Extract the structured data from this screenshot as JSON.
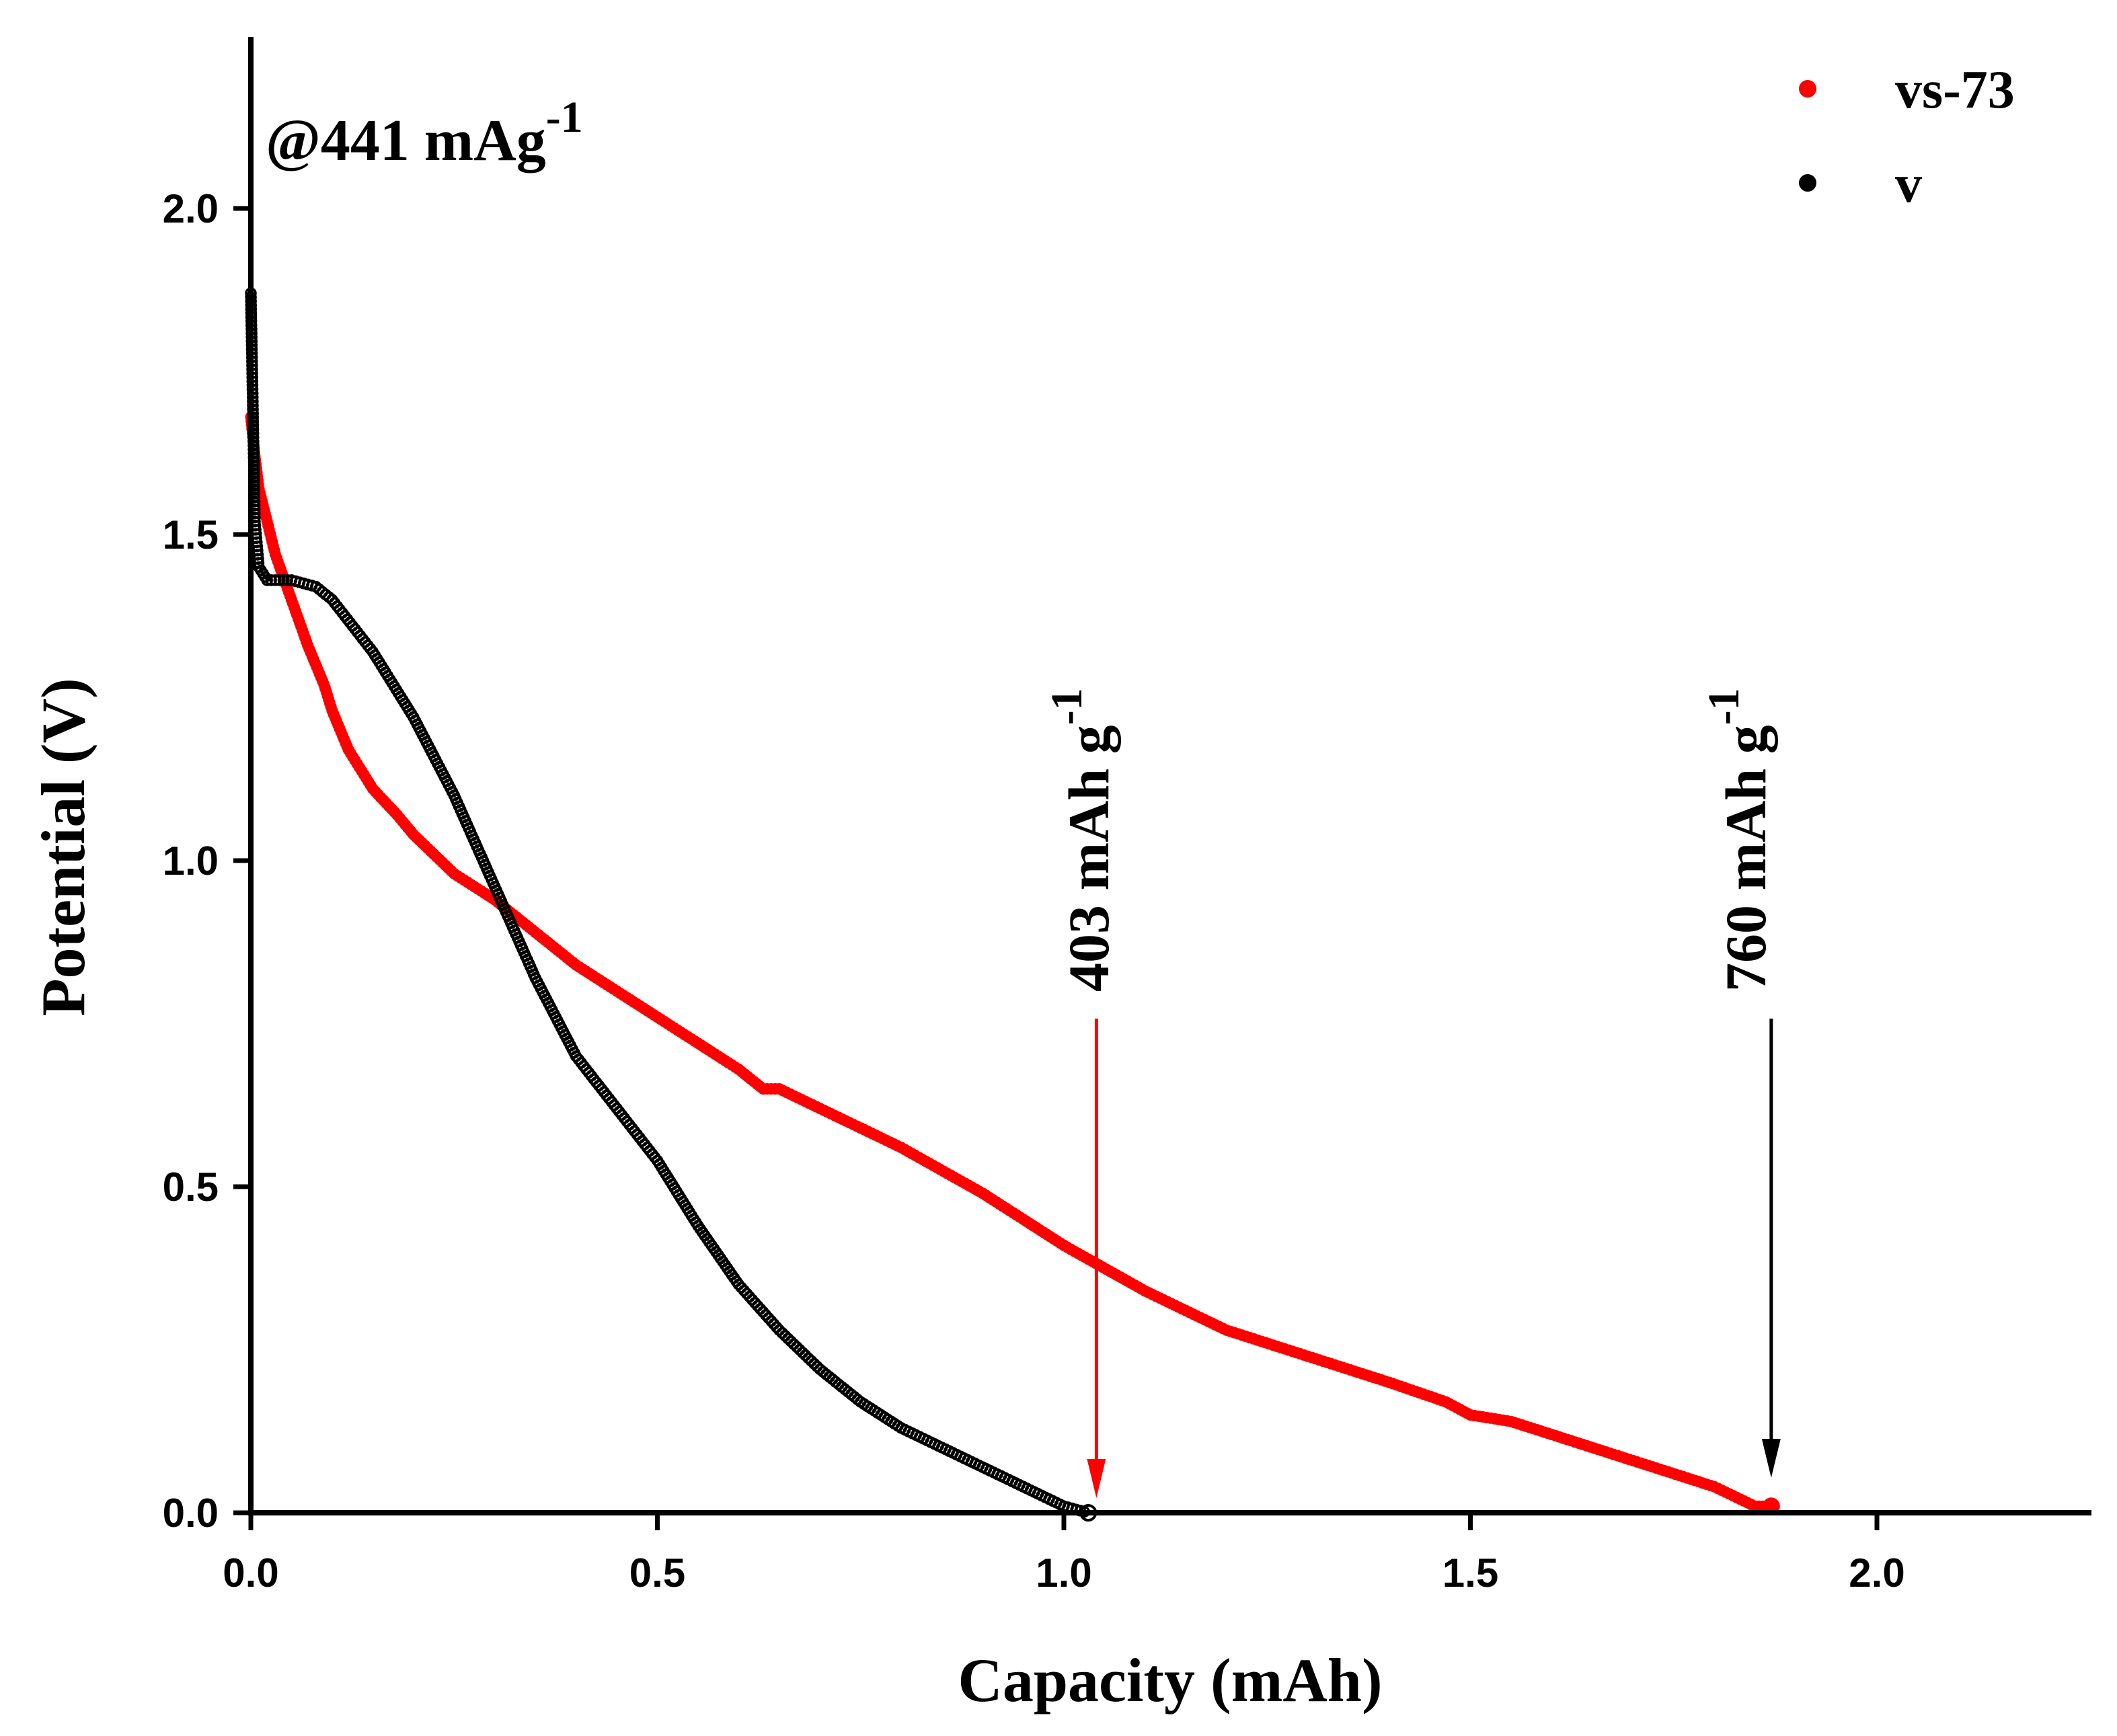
{
  "chart_data": {
    "type": "scatter",
    "title": "",
    "xlabel": "Capacity (mAh)",
    "ylabel": "Potential (V)",
    "xlim": [
      0,
      2.25
    ],
    "ylim": [
      0,
      2.25
    ],
    "xticks": [
      0.0,
      0.5,
      1.0,
      1.5,
      2.0
    ],
    "yticks": [
      0.0,
      0.5,
      1.0,
      1.5,
      2.0
    ],
    "xtick_labels": [
      "0.0",
      "0.5",
      "1.0",
      "1.5",
      "2.0"
    ],
    "ytick_labels": [
      "0.0",
      "0.5",
      "1.0",
      "1.5",
      "2.0"
    ],
    "legend_position": "top-right",
    "series": [
      {
        "name": "vs-73",
        "color": "#ff0000",
        "x": [
          0.0,
          0.005,
          0.01,
          0.02,
          0.03,
          0.05,
          0.07,
          0.09,
          0.1,
          0.12,
          0.15,
          0.18,
          0.2,
          0.25,
          0.3,
          0.35,
          0.4,
          0.45,
          0.5,
          0.55,
          0.6,
          0.63,
          0.65,
          0.7,
          0.8,
          0.9,
          1.0,
          1.1,
          1.2,
          1.3,
          1.4,
          1.47,
          1.5,
          1.55,
          1.6,
          1.7,
          1.8,
          1.85,
          1.87
        ],
        "y": [
          1.68,
          1.62,
          1.57,
          1.52,
          1.47,
          1.4,
          1.33,
          1.27,
          1.23,
          1.17,
          1.11,
          1.07,
          1.04,
          0.98,
          0.94,
          0.89,
          0.84,
          0.8,
          0.76,
          0.72,
          0.68,
          0.65,
          0.65,
          0.62,
          0.56,
          0.49,
          0.41,
          0.34,
          0.28,
          0.24,
          0.2,
          0.17,
          0.15,
          0.14,
          0.12,
          0.08,
          0.04,
          0.01,
          0.01
        ]
      },
      {
        "name": "v",
        "color": "#000000",
        "x": [
          0.0,
          0.005,
          0.01,
          0.02,
          0.05,
          0.08,
          0.1,
          0.15,
          0.2,
          0.25,
          0.3,
          0.35,
          0.4,
          0.45,
          0.5,
          0.55,
          0.6,
          0.65,
          0.7,
          0.75,
          0.8,
          0.85,
          0.9,
          0.95,
          1.0,
          1.03
        ],
        "y": [
          1.87,
          1.52,
          1.45,
          1.43,
          1.43,
          1.42,
          1.4,
          1.32,
          1.22,
          1.1,
          0.96,
          0.82,
          0.7,
          0.62,
          0.54,
          0.44,
          0.35,
          0.28,
          0.22,
          0.17,
          0.13,
          0.1,
          0.07,
          0.04,
          0.01,
          0.0
        ]
      }
    ],
    "annotations": [
      {
        "text": "@441 mAg",
        "superscript": "-1"
      },
      {
        "text": "403 mAh g",
        "superscript": "-1",
        "arrow_x": 1.04,
        "color": "#ff0000"
      },
      {
        "text": "760 mAh g",
        "superscript": "-1",
        "arrow_x": 1.87,
        "color": "#000000"
      }
    ]
  }
}
